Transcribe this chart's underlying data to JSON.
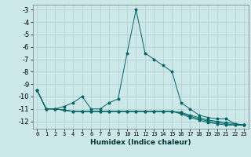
{
  "xlabel": "Humidex (Indice chaleur)",
  "background_color": "#cce8e8",
  "grid_color": "#b8d4d4",
  "line_color": "#006666",
  "xlim": [
    -0.5,
    23.5
  ],
  "ylim": [
    -12.6,
    -2.6
  ],
  "xticks": [
    0,
    1,
    2,
    3,
    4,
    5,
    6,
    7,
    8,
    9,
    10,
    11,
    12,
    13,
    14,
    15,
    16,
    17,
    18,
    19,
    20,
    21,
    22,
    23
  ],
  "yticks": [
    -3,
    -4,
    -5,
    -6,
    -7,
    -8,
    -9,
    -10,
    -11,
    -12
  ],
  "series": [
    [
      -9.5,
      -11.0,
      -11.0,
      -10.8,
      -10.5,
      -10.0,
      -11.0,
      -11.0,
      -10.5,
      -10.2,
      -6.5,
      -3.0,
      -6.5,
      -7.0,
      -7.5,
      -8.0,
      -10.5,
      -11.0,
      -11.5,
      -11.7,
      -11.8,
      -11.8,
      -12.2,
      -12.3
    ],
    [
      -9.5,
      -11.0,
      -11.0,
      -11.1,
      -11.2,
      -11.2,
      -11.2,
      -11.2,
      -11.2,
      -11.2,
      -11.2,
      -11.2,
      -11.2,
      -11.2,
      -11.2,
      -11.2,
      -11.3,
      -11.5,
      -11.7,
      -11.9,
      -12.0,
      -12.1,
      -12.2,
      -12.3
    ],
    [
      -9.5,
      -11.0,
      -11.0,
      -11.1,
      -11.2,
      -11.2,
      -11.2,
      -11.2,
      -11.2,
      -11.2,
      -11.2,
      -11.2,
      -11.2,
      -11.2,
      -11.2,
      -11.2,
      -11.3,
      -11.6,
      -11.8,
      -12.0,
      -12.1,
      -12.2,
      -12.3,
      -12.3
    ],
    [
      -9.5,
      -11.0,
      -11.0,
      -11.1,
      -11.2,
      -11.2,
      -11.2,
      -11.2,
      -11.2,
      -11.2,
      -11.2,
      -11.2,
      -11.2,
      -11.2,
      -11.2,
      -11.2,
      -11.4,
      -11.7,
      -11.9,
      -12.1,
      -12.2,
      -12.3,
      -12.3,
      -12.3
    ]
  ]
}
